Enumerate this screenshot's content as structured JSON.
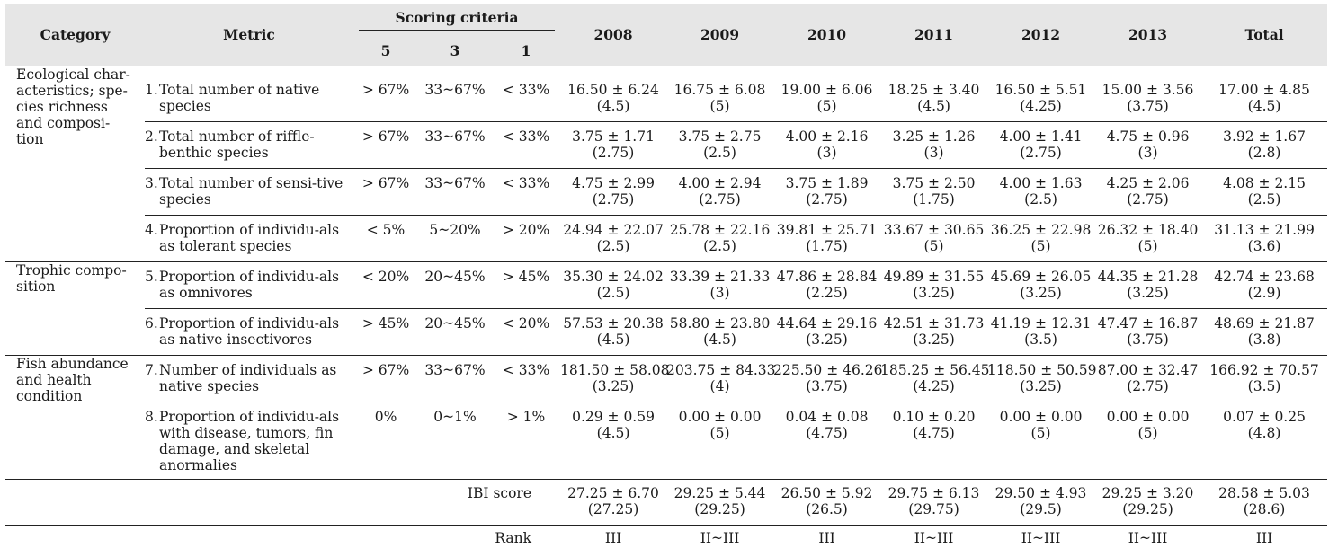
{
  "header": {
    "category": "Category",
    "metric": "Metric",
    "scoring_criteria": "Scoring criteria",
    "score_5": "5",
    "score_3": "3",
    "score_1": "1",
    "years": [
      "2008",
      "2009",
      "2010",
      "2011",
      "2012",
      "2013"
    ],
    "total": "Total"
  },
  "categories": [
    "Ecological char-acteristics; spe-cies richness and composi-tion",
    "Trophic compo-sition",
    "Fish abundance and health condition"
  ],
  "metrics": [
    {
      "num": "1.",
      "name": "Total number of native species",
      "c5": "> 67%",
      "c3": "33~67%",
      "c1": "< 33%",
      "values": [
        {
          "m": "16.50 ± 6.24",
          "s": "(4.5)"
        },
        {
          "m": "16.75 ± 6.08",
          "s": "(5)"
        },
        {
          "m": "19.00 ± 6.06",
          "s": "(5)"
        },
        {
          "m": "18.25 ± 3.40",
          "s": "(4.5)"
        },
        {
          "m": "16.50 ± 5.51",
          "s": "(4.25)"
        },
        {
          "m": "15.00 ± 3.56",
          "s": "(3.75)"
        },
        {
          "m": "17.00 ± 4.85",
          "s": "(4.5)"
        }
      ]
    },
    {
      "num": "2.",
      "name": "Total number of riffle-benthic species",
      "c5": "> 67%",
      "c3": "33~67%",
      "c1": "< 33%",
      "values": [
        {
          "m": "3.75 ± 1.71",
          "s": "(2.75)"
        },
        {
          "m": "3.75 ± 2.75",
          "s": "(2.5)"
        },
        {
          "m": "4.00 ± 2.16",
          "s": "(3)"
        },
        {
          "m": "3.25 ± 1.26",
          "s": "(3)"
        },
        {
          "m": "4.00 ± 1.41",
          "s": "(2.75)"
        },
        {
          "m": "4.75 ± 0.96",
          "s": "(3)"
        },
        {
          "m": "3.92 ± 1.67",
          "s": "(2.8)"
        }
      ]
    },
    {
      "num": "3.",
      "name": "Total number of sensi-tive species",
      "c5": "> 67%",
      "c3": "33~67%",
      "c1": "< 33%",
      "values": [
        {
          "m": "4.75 ± 2.99",
          "s": "(2.75)"
        },
        {
          "m": "4.00 ± 2.94",
          "s": "(2.75)"
        },
        {
          "m": "3.75 ± 1.89",
          "s": "(2.75)"
        },
        {
          "m": "3.75 ± 2.50",
          "s": "(1.75)"
        },
        {
          "m": "4.00 ± 1.63",
          "s": "(2.5)"
        },
        {
          "m": "4.25 ± 2.06",
          "s": "(2.75)"
        },
        {
          "m": "4.08 ± 2.15",
          "s": "(2.5)"
        }
      ]
    },
    {
      "num": "4.",
      "name": "Proportion of individu-als as tolerant species",
      "c5": "< 5%",
      "c3": "5~20%",
      "c1": "> 20%",
      "values": [
        {
          "m": "24.94 ± 22.07",
          "s": "(2.5)"
        },
        {
          "m": "25.78 ± 22.16",
          "s": "(2.5)"
        },
        {
          "m": "39.81 ± 25.71",
          "s": "(1.75)"
        },
        {
          "m": "33.67 ± 30.65",
          "s": "(5)"
        },
        {
          "m": "36.25 ± 22.98",
          "s": "(5)"
        },
        {
          "m": "26.32 ± 18.40",
          "s": "(5)"
        },
        {
          "m": "31.13 ± 21.99",
          "s": "(3.6)"
        }
      ]
    },
    {
      "num": "5.",
      "name": "Proportion of individu-als as omnivores",
      "c5": "< 20%",
      "c3": "20~45%",
      "c1": "> 45%",
      "values": [
        {
          "m": "35.30 ± 24.02",
          "s": "(2.5)"
        },
        {
          "m": "33.39 ± 21.33",
          "s": "(3)"
        },
        {
          "m": "47.86 ± 28.84",
          "s": "(2.25)"
        },
        {
          "m": "49.89 ± 31.55",
          "s": "(3.25)"
        },
        {
          "m": "45.69 ± 26.05",
          "s": "(3.25)"
        },
        {
          "m": "44.35 ± 21.28",
          "s": "(3.25)"
        },
        {
          "m": "42.74 ± 23.68",
          "s": "(2.9)"
        }
      ]
    },
    {
      "num": "6.",
      "name": "Proportion of individu-als as native insectivores",
      "c5": "> 45%",
      "c3": "20~45%",
      "c1": "< 20%",
      "values": [
        {
          "m": "57.53 ± 20.38",
          "s": "(4.5)"
        },
        {
          "m": "58.80 ± 23.80",
          "s": "(4.5)"
        },
        {
          "m": "44.64 ± 29.16",
          "s": "(3.25)"
        },
        {
          "m": "42.51 ± 31.73",
          "s": "(3.25)"
        },
        {
          "m": "41.19 ± 12.31",
          "s": "(3.5)"
        },
        {
          "m": "47.47 ± 16.87",
          "s": "(3.75)"
        },
        {
          "m": "48.69 ± 21.87",
          "s": "(3.8)"
        }
      ]
    },
    {
      "num": "7.",
      "name": "Number of individuals as native species",
      "c5": "> 67%",
      "c3": "33~67%",
      "c1": "< 33%",
      "values": [
        {
          "m": "181.50 ± 58.08",
          "s": "(3.25)"
        },
        {
          "m": "203.75 ± 84.33",
          "s": "(4)"
        },
        {
          "m": "225.50 ± 46.26",
          "s": "(3.75)"
        },
        {
          "m": "185.25 ± 56.45",
          "s": "(4.25)"
        },
        {
          "m": "118.50 ± 50.59",
          "s": "(3.25)"
        },
        {
          "m": "87.00 ± 32.47",
          "s": "(2.75)"
        },
        {
          "m": "166.92 ± 70.57",
          "s": "(3.5)"
        }
      ]
    },
    {
      "num": "8.",
      "name": "Proportion of individu-als with disease, tumors, fin damage, and skeletal anormalies",
      "c5": "0%",
      "c3": "0~1%",
      "c1": "> 1%",
      "values": [
        {
          "m": "0.29 ± 0.59",
          "s": "(4.5)"
        },
        {
          "m": "0.00 ± 0.00",
          "s": "(5)"
        },
        {
          "m": "0.04 ± 0.08",
          "s": "(4.75)"
        },
        {
          "m": "0.10 ± 0.20",
          "s": "(4.75)"
        },
        {
          "m": "0.00 ± 0.00",
          "s": "(5)"
        },
        {
          "m": "0.00 ± 0.00",
          "s": "(5)"
        },
        {
          "m": "0.07 ± 0.25",
          "s": "(4.8)"
        }
      ]
    }
  ],
  "ibi": {
    "label": "IBI score",
    "values": [
      {
        "m": "27.25 ± 6.70",
        "s": "(27.25)"
      },
      {
        "m": "29.25 ± 5.44",
        "s": "(29.25)"
      },
      {
        "m": "26.50 ± 5.92",
        "s": "(26.5)"
      },
      {
        "m": "29.75 ± 6.13",
        "s": "(29.75)"
      },
      {
        "m": "29.50 ± 4.93",
        "s": "(29.5)"
      },
      {
        "m": "29.25 ± 3.20",
        "s": "(29.25)"
      },
      {
        "m": "28.58 ± 5.03",
        "s": "(28.6)"
      }
    ]
  },
  "rank": {
    "label": "Rank",
    "values": [
      "III",
      "II~III",
      "III",
      "II~III",
      "II~III",
      "II~III",
      "III"
    ]
  }
}
